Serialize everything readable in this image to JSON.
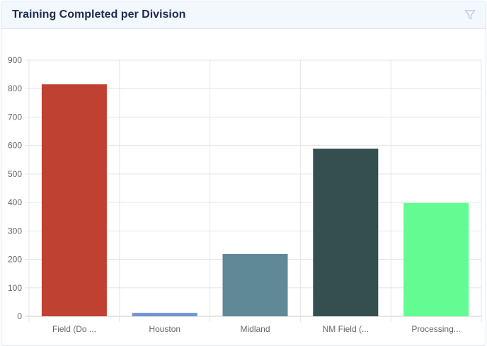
{
  "header": {
    "title": "Training Completed per Division",
    "filter_icon": "filter-icon"
  },
  "chart_data": {
    "type": "bar",
    "title": "Training Completed per Division",
    "categories": [
      "Field (Do ...",
      "Houston",
      "Midland",
      "NM Field (...",
      "Processing..."
    ],
    "values": [
      815,
      12,
      219,
      589,
      398
    ],
    "colors": [
      "#bf4132",
      "#6f93d6",
      "#5f8996",
      "#354f4f",
      "#62fc93"
    ],
    "ylim": [
      0,
      900
    ],
    "yticks": [
      0,
      100,
      200,
      300,
      400,
      500,
      600,
      700,
      800,
      900
    ],
    "grid": true,
    "xlabel": "",
    "ylabel": ""
  }
}
